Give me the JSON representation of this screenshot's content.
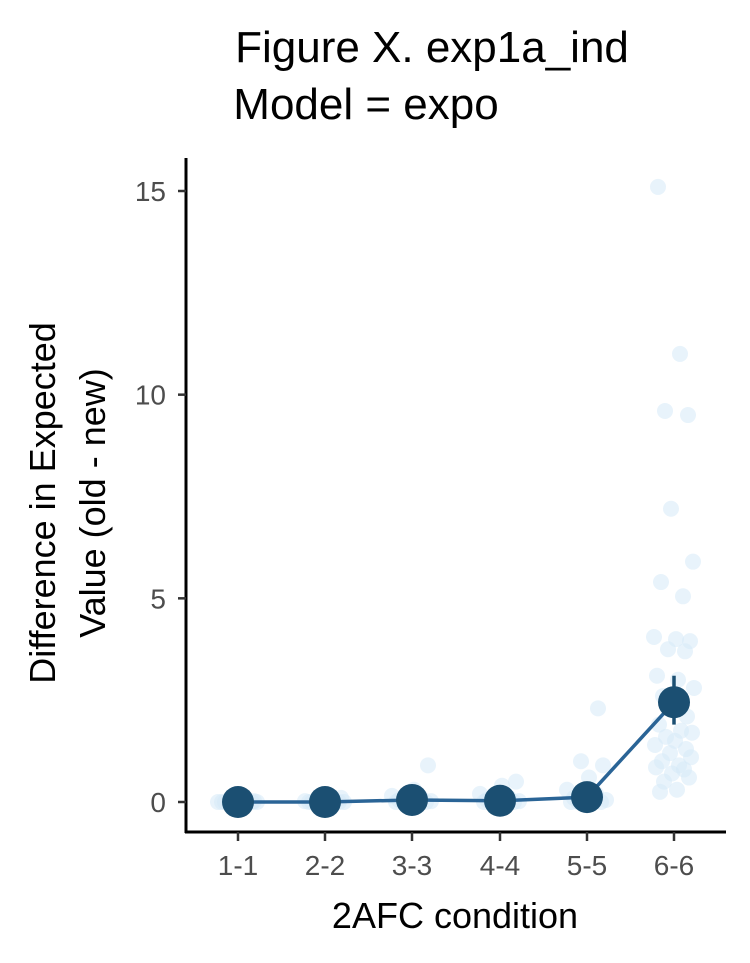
{
  "chart_data": {
    "type": "scatter",
    "title": [
      "Figure X. exp1a_ind",
      "Model = expo"
    ],
    "xlabel": "2AFC condition",
    "ylabel": [
      "Difference in Expected",
      "Value (old - new)"
    ],
    "categories": [
      "1-1",
      "2-2",
      "3-3",
      "4-4",
      "5-5",
      "6-6"
    ],
    "ylim": [
      -0.7,
      15.8
    ],
    "yticks": [
      0,
      5,
      10,
      15
    ],
    "grid": false,
    "legend": "none",
    "colors": {
      "mean": "#1b4f72",
      "line": "#2a6496",
      "points": "#d6eaf8"
    },
    "means": [
      0.0,
      0.0,
      0.05,
      0.03,
      0.12,
      2.45
    ],
    "error_bars": [
      [
        -0.05,
        0.05
      ],
      [
        -0.05,
        0.05
      ],
      [
        0.0,
        0.1
      ],
      [
        -0.02,
        0.08
      ],
      [
        0.05,
        0.2
      ],
      [
        1.9,
        3.1
      ]
    ],
    "individual_points": [
      [
        0,
        0,
        0,
        0,
        0,
        0,
        0,
        0,
        0,
        0,
        0.02,
        0.03
      ],
      [
        0,
        0,
        0,
        0,
        0,
        0,
        0,
        0.01,
        0.02,
        0.05,
        0.1
      ],
      [
        0,
        0,
        0,
        0,
        0,
        0.02,
        0.05,
        0.1,
        0.15,
        0.3,
        0.9
      ],
      [
        0,
        0,
        0,
        0,
        0,
        0.02,
        0.05,
        0.1,
        0.2,
        0.4,
        0.5
      ],
      [
        0,
        0,
        0,
        0,
        0,
        0.05,
        0.1,
        0.2,
        0.3,
        0.6,
        0.9,
        1.0,
        2.3
      ],
      [
        15.1,
        11.0,
        9.6,
        9.5,
        7.2,
        5.9,
        5.4,
        5.05,
        4.05,
        4.0,
        3.95,
        3.75,
        3.7,
        3.1,
        3.0,
        2.8,
        2.6,
        2.3,
        2.1,
        1.9,
        1.75,
        1.7,
        1.6,
        1.5,
        1.4,
        1.3,
        1.2,
        1.1,
        1.0,
        0.9,
        0.85,
        0.8,
        0.7,
        0.6,
        0.5,
        0.3,
        0.25
      ]
    ]
  }
}
